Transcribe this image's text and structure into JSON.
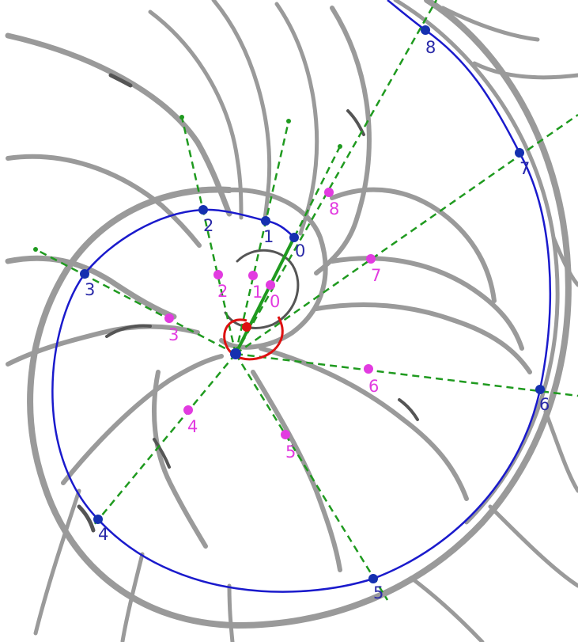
{
  "colors": {
    "spiral": "#1a1acc",
    "blue_point": "#1530b0",
    "blue_label": "#2a2aa8",
    "magenta": "#e23be0",
    "guide": "#1f9a1f",
    "angle_arc": "#dd1111",
    "shell": "#9a9a9a"
  },
  "blue_labels": [
    "0",
    "1",
    "2",
    "3",
    "4",
    "5",
    "6",
    "7",
    "8"
  ],
  "magenta_labels": [
    "0",
    "1",
    "2",
    "3",
    "4",
    "5",
    "6",
    "7",
    "8"
  ]
}
